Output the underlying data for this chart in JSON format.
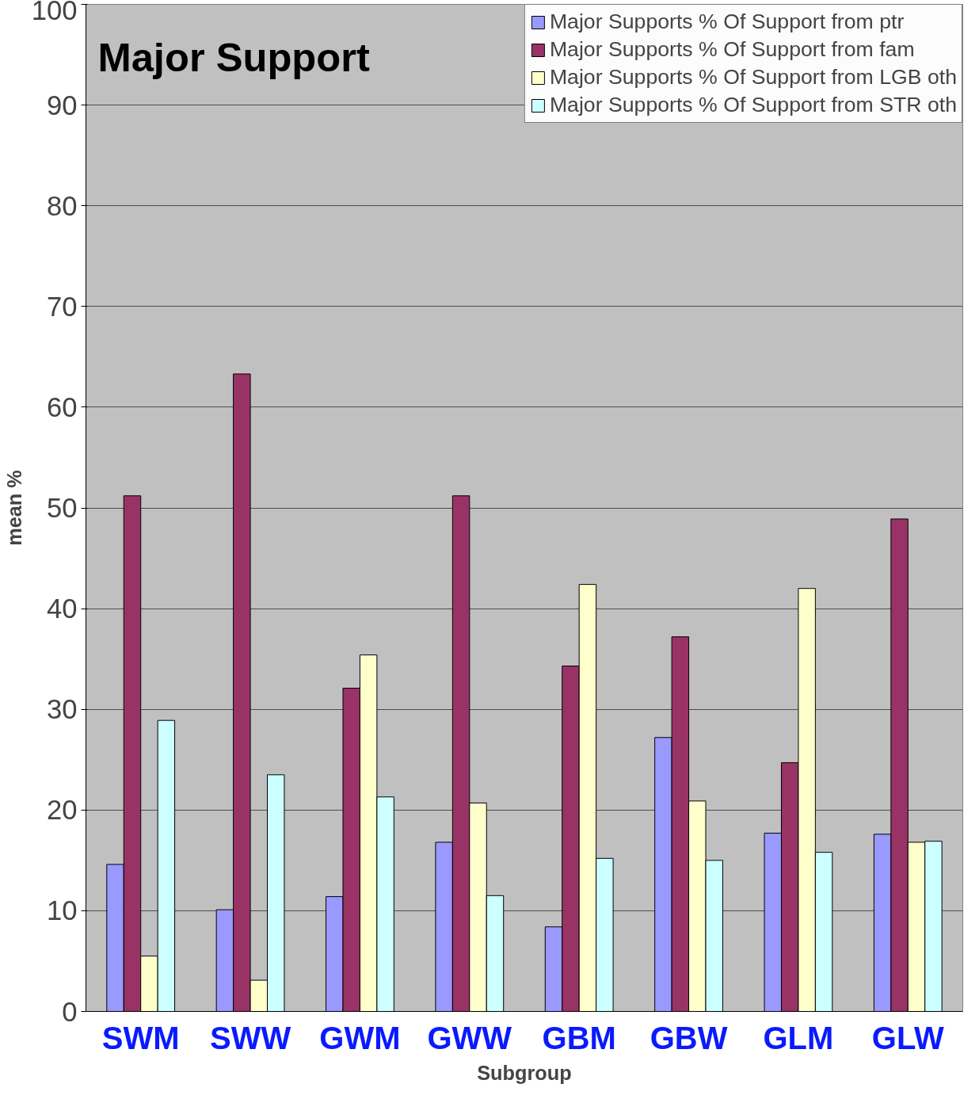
{
  "chart_data": {
    "type": "bar",
    "title": "Major Support",
    "xlabel": "Subgroup",
    "ylabel": "mean %",
    "categories": [
      "SWM",
      "SWW",
      "GWM",
      "GWW",
      "GBM",
      "GBW",
      "GLM",
      "GLW"
    ],
    "series": [
      {
        "name": "Major Supports % Of Support from ptr",
        "color": "#9999ff",
        "values": [
          14.6,
          10.1,
          11.4,
          16.8,
          8.4,
          27.2,
          17.7,
          17.6
        ]
      },
      {
        "name": "Major Supports % Of Support from fam",
        "color": "#993366",
        "values": [
          51.2,
          63.3,
          32.1,
          51.2,
          34.3,
          37.2,
          24.7,
          48.9
        ]
      },
      {
        "name": "Major Supports % Of Support from LGB oth",
        "color": "#ffffcc",
        "values": [
          5.5,
          3.1,
          35.4,
          20.7,
          42.4,
          20.9,
          42.0,
          16.8
        ]
      },
      {
        "name": "Major Supports % Of Support from STR oth",
        "color": "#ccffff",
        "values": [
          28.9,
          23.5,
          21.3,
          11.5,
          15.2,
          15.0,
          15.8,
          16.9
        ]
      }
    ],
    "ylim": [
      0,
      100
    ],
    "yticks": [
      0,
      10,
      20,
      30,
      40,
      50,
      60,
      70,
      80,
      90,
      100
    ],
    "grid": "y",
    "legend": "top right"
  }
}
